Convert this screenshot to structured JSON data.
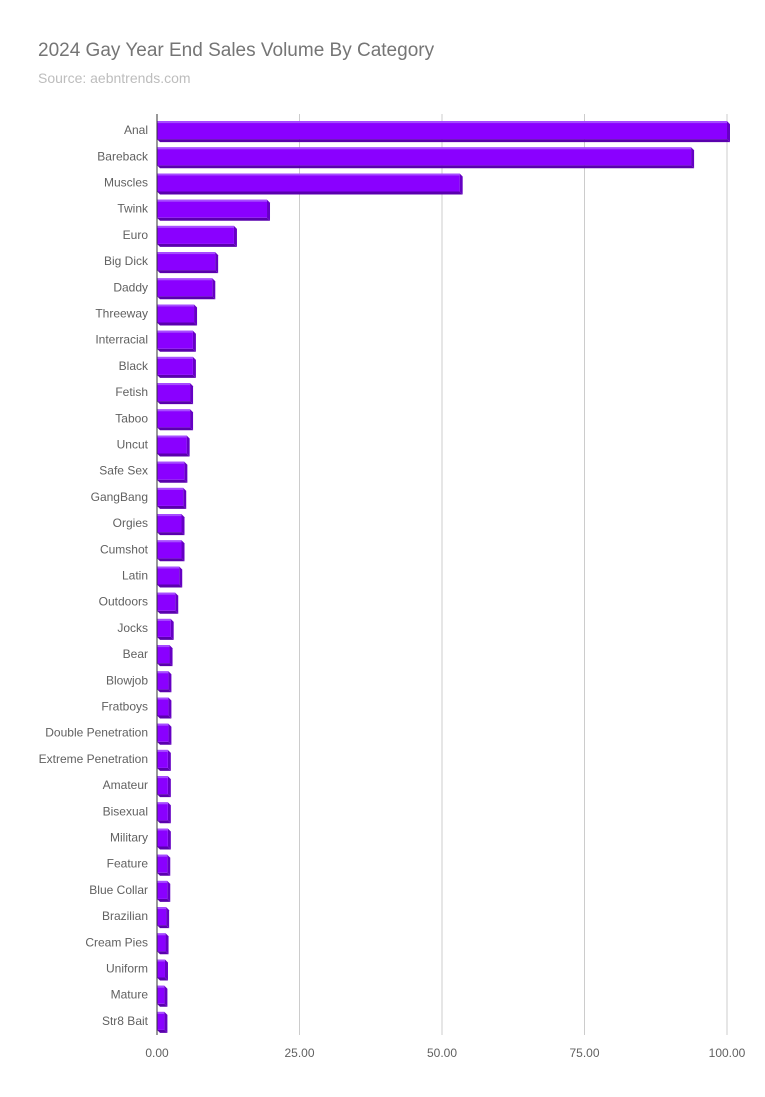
{
  "colors": {
    "bar": "#8a00ff",
    "bar_top": "#a64dff",
    "bar_side": "#6600c4",
    "bar_bottom": "#5a00ad",
    "grid": "#cccccc",
    "axis": "#333333",
    "title": "#757575",
    "subtitle": "#bdbdbd",
    "label": "#616161"
  },
  "chart_data": {
    "type": "bar",
    "orientation": "horizontal",
    "title": "2024 Gay Year End Sales Volume By Category",
    "subtitle": "Source: aebntrends.com",
    "xlabel": "",
    "ylabel": "",
    "xlim": [
      0,
      100
    ],
    "ticks": [
      "0.00",
      "25.00",
      "50.00",
      "75.00",
      "100.00"
    ],
    "tick_values": [
      0,
      25,
      50,
      75,
      100
    ],
    "grid": true,
    "legend": "none",
    "categories": [
      "Anal",
      "Bareback",
      "Muscles",
      "Twink",
      "Euro",
      "Big Dick",
      "Daddy",
      "Threeway",
      "Interracial",
      "Black",
      "Fetish",
      "Taboo",
      "Uncut",
      "Safe Sex",
      "GangBang",
      "Orgies",
      "Cumshot",
      "Latin",
      "Outdoors",
      "Jocks",
      "Bear",
      "Blowjob",
      "Fratboys",
      "Double Penetration",
      "Extreme Penetration",
      "Amateur",
      "Bisexual",
      "Military",
      "Feature",
      "Blue Collar",
      "Brazilian",
      "Cream Pies",
      "Uniform",
      "Mature",
      "Str8 Bait"
    ],
    "values": [
      100,
      93.7,
      53.1,
      19.3,
      13.5,
      10.2,
      9.7,
      6.5,
      6.3,
      6.3,
      5.8,
      5.8,
      5.2,
      4.8,
      4.6,
      4.3,
      4.3,
      3.9,
      3.2,
      2.4,
      2.2,
      2.0,
      2.0,
      2.0,
      1.9,
      1.9,
      1.9,
      1.9,
      1.8,
      1.8,
      1.6,
      1.5,
      1.4,
      1.3,
      1.3
    ]
  }
}
